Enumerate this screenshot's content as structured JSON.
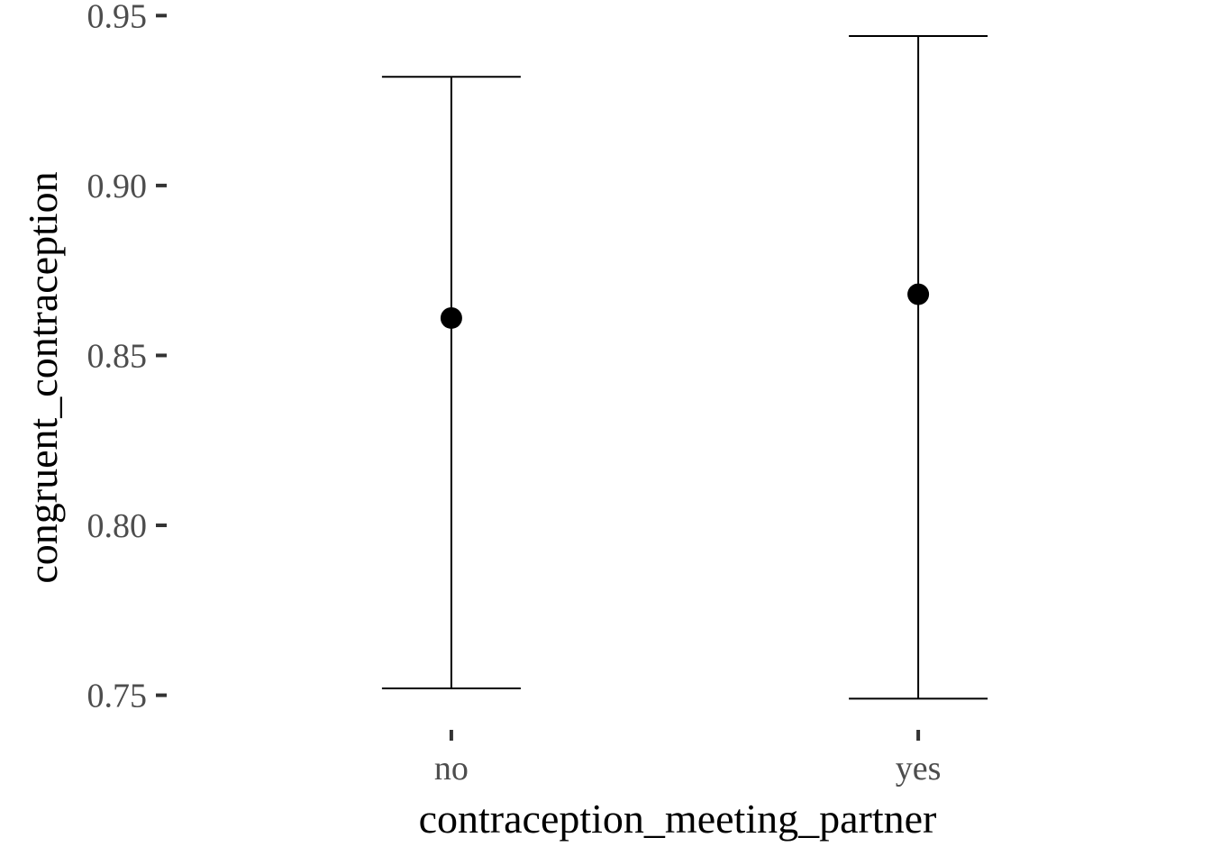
{
  "chart_data": {
    "type": "errorbar",
    "xlabel": "contraception_meeting_partner",
    "ylabel": "congruent_contraception",
    "categories": [
      "no",
      "yes"
    ],
    "series": [
      {
        "points": [
          {
            "x": "no",
            "y": 0.861,
            "ymin": 0.752,
            "ymax": 0.932
          },
          {
            "x": "yes",
            "y": 0.868,
            "ymin": 0.749,
            "ymax": 0.944
          }
        ]
      }
    ],
    "yticks": [
      "0.75",
      "0.80",
      "0.85",
      "0.90",
      "0.95"
    ],
    "ylim": [
      0.743,
      0.953
    ],
    "grid": false,
    "legend": "none",
    "colors": {
      "point": "#000000",
      "errorbar": "#000000",
      "tick_label": "#4d4d4d",
      "axis_title": "#000000",
      "tick_mark": "#333333"
    }
  }
}
